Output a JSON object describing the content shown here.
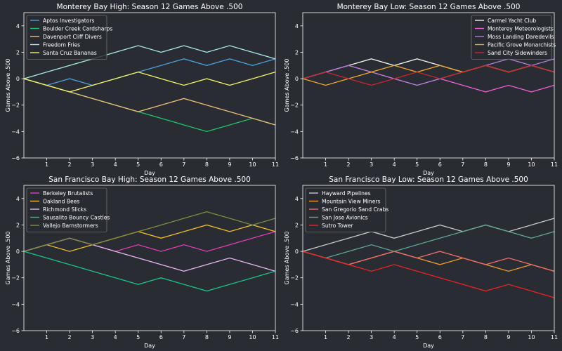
{
  "figure": {
    "background": "#292c33",
    "axes_color": "#ffffff",
    "text_color": "#ffffff",
    "legend_bg": "#292c33"
  },
  "chart_data": [
    {
      "type": "line",
      "title": "Monterey Bay High: Season 12 Games Above .500",
      "xlabel": "Day",
      "ylabel": "Games Above .500",
      "xlim": [
        0,
        11
      ],
      "ylim": [
        -6,
        5
      ],
      "xticks": [
        1,
        2,
        3,
        4,
        5,
        6,
        7,
        8,
        9,
        10,
        11
      ],
      "yticks": [
        -6,
        -4,
        -2,
        0,
        2,
        4
      ],
      "grid": false,
      "legend_position": "top-left",
      "x": [
        0,
        1,
        2,
        3,
        4,
        5,
        6,
        7,
        8,
        9,
        10,
        11
      ],
      "series": [
        {
          "name": "Aptos Investigators",
          "color": "#4f9fd8",
          "values": [
            0,
            -0.5,
            0,
            -0.5,
            0,
            0.5,
            1,
            1.5,
            1,
            1.5,
            1,
            1.5
          ]
        },
        {
          "name": "Boulder Creek Cardsharps",
          "color": "#1fc56e",
          "values": [
            0,
            -0.5,
            -1,
            -1.5,
            -2,
            -2.5,
            -3,
            -3.5,
            -4,
            -3.5,
            -3,
            -3.5
          ]
        },
        {
          "name": "Davenport Cliff Divers",
          "color": "#f0c07a",
          "values": [
            0,
            -0.5,
            -1,
            -1.5,
            -2,
            -2.5,
            -2,
            -1.5,
            -2,
            -2.5,
            -3,
            -3.5
          ]
        },
        {
          "name": "Freedom Fries",
          "color": "#a8eee0",
          "values": [
            0,
            0.5,
            1,
            1.5,
            2,
            2.5,
            2,
            2.5,
            2,
            2.5,
            2,
            1.5
          ]
        },
        {
          "name": "Santa Cruz Bananas",
          "color": "#f5f56a",
          "values": [
            0,
            -0.5,
            -1,
            -0.5,
            0,
            0.5,
            0,
            -0.5,
            0,
            -0.5,
            0,
            0.5
          ]
        }
      ]
    },
    {
      "type": "line",
      "title": "Monterey Bay Low: Season 12 Games Above .500",
      "xlabel": "Day",
      "ylabel": "Games Above .500",
      "xlim": [
        0,
        11
      ],
      "ylim": [
        -6,
        5
      ],
      "xticks": [
        1,
        2,
        3,
        4,
        5,
        6,
        7,
        8,
        9,
        10,
        11
      ],
      "yticks": [
        -6,
        -4,
        -2,
        0,
        2,
        4
      ],
      "grid": false,
      "legend_position": "top-right",
      "x": [
        0,
        1,
        2,
        3,
        4,
        5,
        6,
        7,
        8,
        9,
        10,
        11
      ],
      "series": [
        {
          "name": "Carmel Yacht Club",
          "color": "#f4f4ea",
          "values": [
            0,
            0.5,
            1,
            1.5,
            1,
            1.5,
            1,
            0.5,
            1,
            0.5,
            1,
            0.5
          ]
        },
        {
          "name": "Monterey Meteorologists",
          "color": "#ee5fd4",
          "values": [
            0,
            0.5,
            1,
            0.5,
            0,
            -0.5,
            0,
            -0.5,
            -1,
            -0.5,
            -1,
            -0.5
          ]
        },
        {
          "name": "Moss Landing Daredevils",
          "color": "#b27ed6",
          "values": [
            0,
            0.5,
            1,
            0.5,
            0,
            -0.5,
            0,
            0.5,
            1,
            1.5,
            1,
            1.5
          ]
        },
        {
          "name": "Pacific Grove Monarchists",
          "color": "#f0a92a",
          "values": [
            0,
            -0.5,
            0,
            0.5,
            1,
            0.5,
            1,
            0.5,
            1,
            0.5,
            1,
            0.5
          ]
        },
        {
          "name": "Sand City Sidewinders",
          "color": "#cc2430",
          "values": [
            0,
            0.5,
            0,
            -0.5,
            0,
            0.5,
            0,
            0.5,
            1,
            0.5,
            1,
            0.5
          ]
        }
      ]
    },
    {
      "type": "line",
      "title": "San Francisco Bay High: Season 12 Games Above .500",
      "xlabel": "Day",
      "ylabel": "Games Above .500",
      "xlim": [
        0,
        11
      ],
      "ylim": [
        -6,
        5
      ],
      "xticks": [
        1,
        2,
        3,
        4,
        5,
        6,
        7,
        8,
        9,
        10,
        11
      ],
      "yticks": [
        -6,
        -4,
        -2,
        0,
        2,
        4
      ],
      "grid": false,
      "legend_position": "top-left",
      "x": [
        0,
        1,
        2,
        3,
        4,
        5,
        6,
        7,
        8,
        9,
        10,
        11
      ],
      "series": [
        {
          "name": "Berkeley Brutalists",
          "color": "#e33db8",
          "values": [
            0,
            0.5,
            1,
            0.5,
            0,
            0.5,
            0,
            0.5,
            0,
            0.5,
            1,
            1.5
          ]
        },
        {
          "name": "Oakland Bees",
          "color": "#f4bd26",
          "values": [
            0,
            0.5,
            0,
            0.5,
            1,
            1.5,
            1,
            1.5,
            2,
            1.5,
            2,
            1.5
          ]
        },
        {
          "name": "Richmond Slicks",
          "color": "#e8b6f0",
          "values": [
            0,
            0.5,
            1,
            0.5,
            0,
            -0.5,
            -1,
            -1.5,
            -1,
            -0.5,
            -1,
            -1.5
          ]
        },
        {
          "name": "Sausalito Bouncy Castles",
          "color": "#18c38e",
          "values": [
            0,
            -0.5,
            -1,
            -1.5,
            -2,
            -2.5,
            -2,
            -2.5,
            -3,
            -2.5,
            -2,
            -1.5
          ]
        },
        {
          "name": "Vallejo Barnstormers",
          "color": "#7e8e3e",
          "values": [
            0,
            0.5,
            1,
            0.5,
            1,
            1.5,
            2,
            2.5,
            3,
            2.5,
            2,
            2.5
          ]
        }
      ]
    },
    {
      "type": "line",
      "title": "San Francisco Bay Low: Season 12 Games Above .500",
      "xlabel": "Day",
      "ylabel": "Games Above .500",
      "xlim": [
        0,
        11
      ],
      "ylim": [
        -6,
        5
      ],
      "xticks": [
        1,
        2,
        3,
        4,
        5,
        6,
        7,
        8,
        9,
        10,
        11
      ],
      "yticks": [
        -6,
        -4,
        -2,
        0,
        2,
        4
      ],
      "grid": false,
      "legend_position": "top-left",
      "x": [
        0,
        1,
        2,
        3,
        4,
        5,
        6,
        7,
        8,
        9,
        10,
        11
      ],
      "series": [
        {
          "name": "Hayward Pipelines",
          "color": "#c9c9c9",
          "values": [
            0,
            0.5,
            1,
            1.5,
            1,
            1.5,
            2,
            1.5,
            2,
            1.5,
            2,
            2.5
          ]
        },
        {
          "name": "Mountain View Miners",
          "color": "#ef9a2a",
          "values": [
            0,
            -0.5,
            -1,
            -0.5,
            0,
            -0.5,
            -1,
            -0.5,
            -1,
            -1.5,
            -1,
            -1.5
          ]
        },
        {
          "name": "San Gregorio Sand Crabs",
          "color": "#f26d6d",
          "values": [
            0,
            -0.5,
            -1,
            -0.5,
            0,
            -0.5,
            0,
            -0.5,
            -1,
            -0.5,
            -1,
            -1.5
          ]
        },
        {
          "name": "San Jose Avionics",
          "color": "#5fa694",
          "values": [
            0,
            -0.5,
            0,
            0.5,
            0,
            0.5,
            1,
            1.5,
            2,
            1.5,
            1,
            1.5
          ]
        },
        {
          "name": "Sutro Tower",
          "color": "#ee2222",
          "values": [
            0,
            -0.5,
            -1,
            -1.5,
            -1,
            -1.5,
            -2,
            -2.5,
            -3,
            -2.5,
            -3,
            -3.5
          ]
        }
      ]
    }
  ]
}
